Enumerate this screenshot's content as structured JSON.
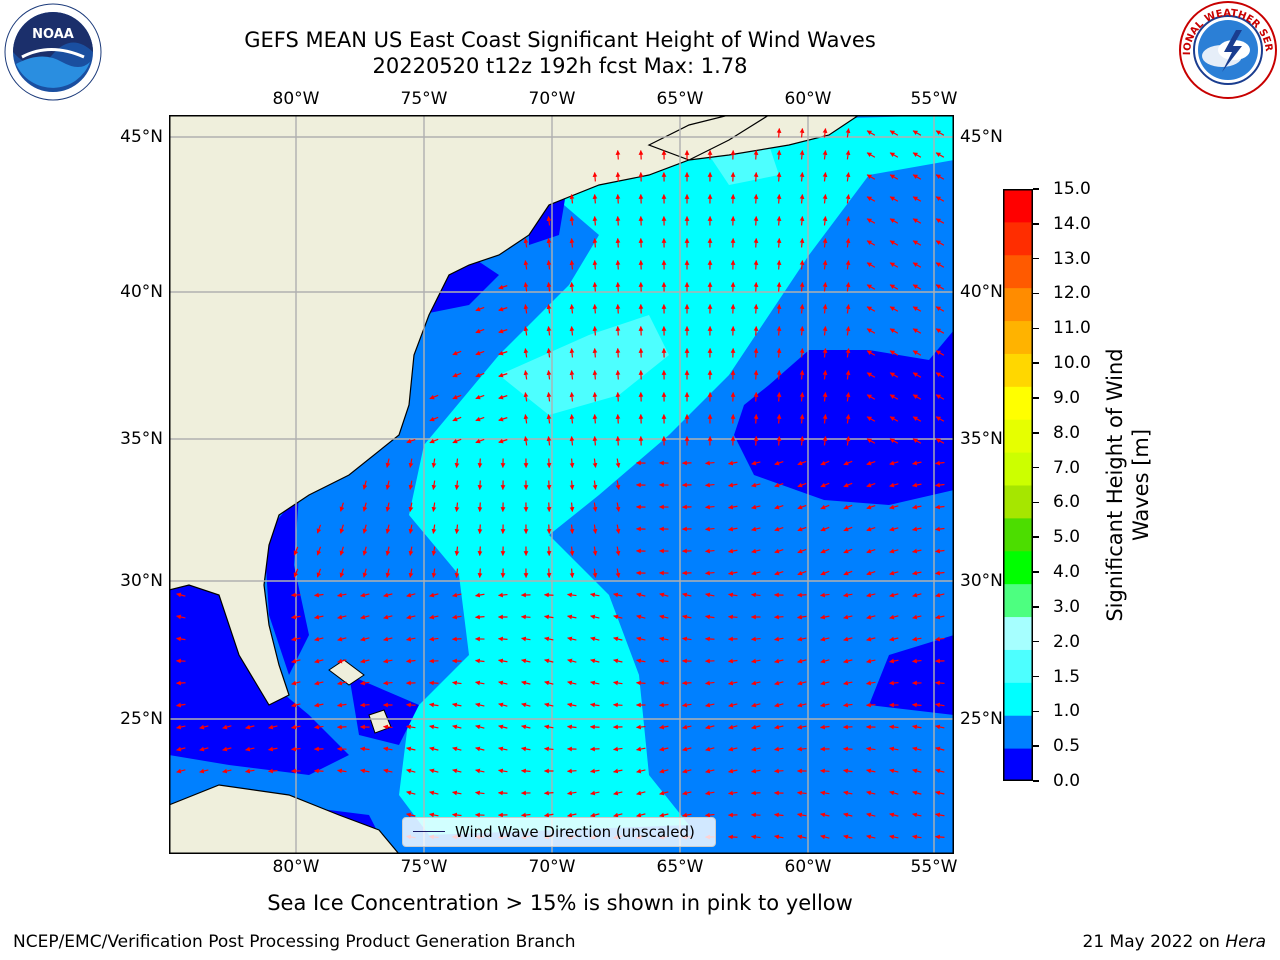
{
  "title": {
    "line1": "GEFS MEAN US East Coast Significant Height of Wind Waves",
    "line2": "20220520 t12z 192h fcst   Max: 1.78"
  },
  "map": {
    "lon_labels": [
      "80°W",
      "75°W",
      "70°W",
      "65°W",
      "60°W",
      "55°W"
    ],
    "lat_labels": [
      "45°N",
      "40°N",
      "35°N",
      "30°N",
      "25°N"
    ],
    "lon_range": [
      -85,
      -54.5
    ],
    "lat_range": [
      20.5,
      45.8
    ],
    "land_color": "#efefdc",
    "coast_color": "#000000",
    "grid_color": "#b0b0b0",
    "arrow_color": "#ff0000"
  },
  "legend": {
    "label": "Wind Wave Direction (unscaled)"
  },
  "colorbar": {
    "label_line1": "Significant Height of Wind",
    "label_line2": "Waves [m]",
    "ticks": [
      "0.0",
      "0.5",
      "1.0",
      "1.5",
      "2.0",
      "3.0",
      "4.0",
      "5.0",
      "6.0",
      "7.0",
      "8.0",
      "9.0",
      "10.0",
      "11.0",
      "12.0",
      "13.0",
      "14.0",
      "15.0"
    ],
    "colors": [
      "#0000ff",
      "#0080ff",
      "#00ffff",
      "#4dffff",
      "#a6ffff",
      "#4dff80",
      "#00ff00",
      "#4cdd00",
      "#a6e600",
      "#ccff00",
      "#e6ff00",
      "#ffff00",
      "#ffd700",
      "#ffb300",
      "#ff8c00",
      "#ff5a00",
      "#ff2d00",
      "#ff0000"
    ]
  },
  "note": "Sea Ice Concentration > 15% is shown in pink to yellow",
  "footer": {
    "left": "NCEP/EMC/Verification Post Processing Product Generation Branch",
    "right_date": "21 May 2022 on ",
    "right_machine": "Hera"
  },
  "logos": {
    "left_text": "NOAA",
    "right_text": "NATIONAL WEATHER SERVICE"
  }
}
